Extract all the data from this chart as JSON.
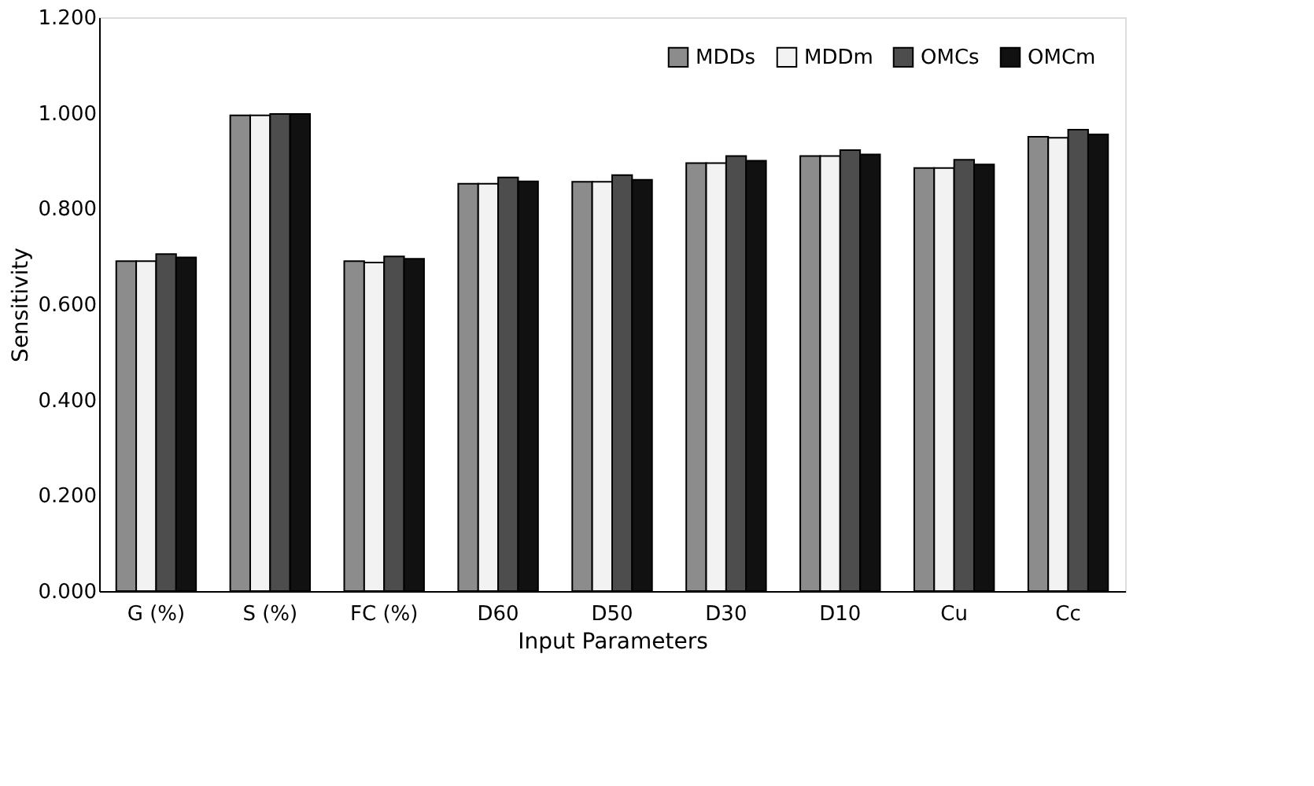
{
  "chart_data": {
    "type": "bar",
    "xlabel": "Input Parameters",
    "ylabel": "Sensitivity",
    "categories": [
      "G (%)",
      "S (%)",
      "FC (%)",
      "D60",
      "D50",
      "D30",
      "D10",
      "Cu",
      "Cc"
    ],
    "series": [
      {
        "name": "MDDs",
        "color": "#8c8c8c",
        "values": [
          0.69,
          0.995,
          0.69,
          0.852,
          0.856,
          0.895,
          0.91,
          0.885,
          0.95
        ]
      },
      {
        "name": "MDDm",
        "color": "#f2f2f2",
        "values": [
          0.69,
          0.995,
          0.687,
          0.852,
          0.856,
          0.895,
          0.91,
          0.885,
          0.948
        ]
      },
      {
        "name": "OMCs",
        "color": "#4d4d4d",
        "values": [
          0.705,
          0.998,
          0.7,
          0.865,
          0.87,
          0.91,
          0.922,
          0.902,
          0.965
        ]
      },
      {
        "name": "OMCm",
        "color": "#111111",
        "values": [
          0.698,
          0.998,
          0.695,
          0.857,
          0.86,
          0.9,
          0.913,
          0.892,
          0.955
        ]
      }
    ],
    "ylim": [
      0,
      1.2
    ],
    "yticks": [
      {
        "value": 0,
        "label": "0.000"
      },
      {
        "value": 0.2,
        "label": "0.200"
      },
      {
        "value": 0.4,
        "label": "0.400"
      },
      {
        "value": 0.6,
        "label": "0.600"
      },
      {
        "value": 0.8,
        "label": "0.800"
      },
      {
        "value": 1.0,
        "label": "1.000"
      },
      {
        "value": 1.2,
        "label": "1.200"
      }
    ],
    "grid": false,
    "legend": "top right"
  }
}
